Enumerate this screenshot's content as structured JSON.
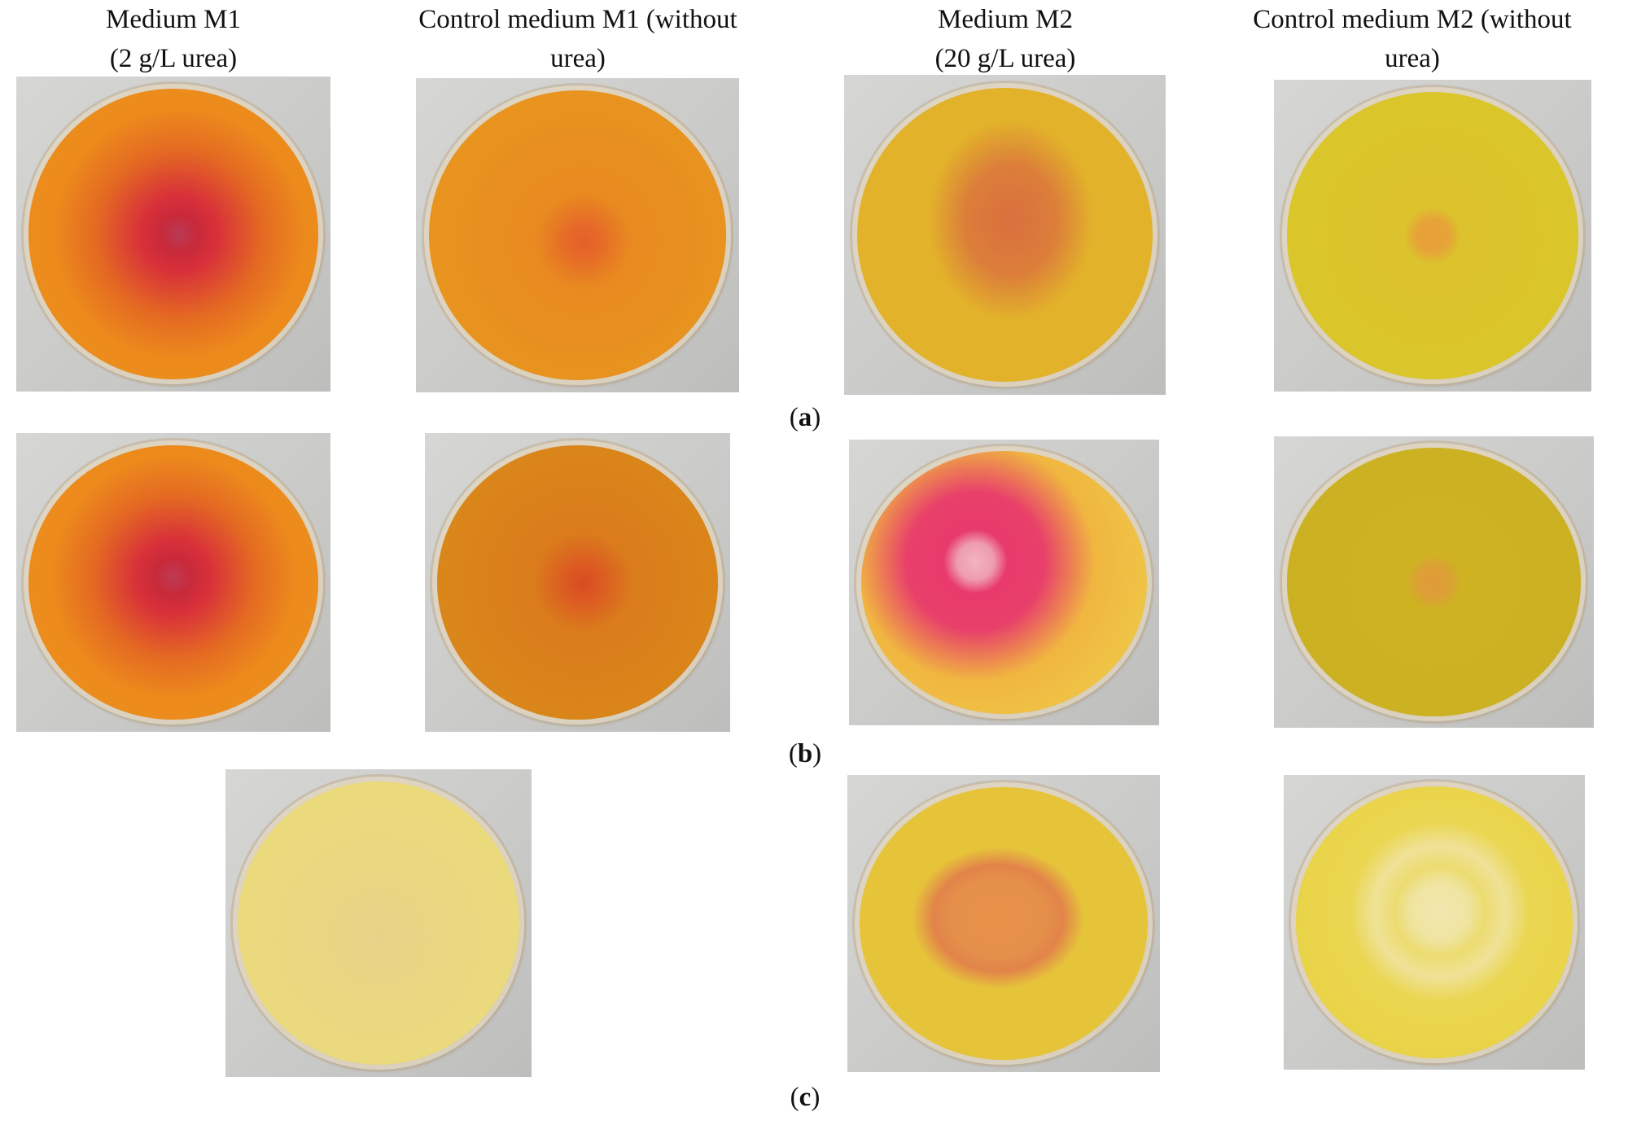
{
  "headers": [
    {
      "line1": "Medium M1",
      "line2": "(2 g/L urea)"
    },
    {
      "line1": "Control medium M1 (without",
      "line2": "urea)"
    },
    {
      "line1": "Medium M2",
      "line2": "(20 g/L urea)"
    },
    {
      "line1": "Control medium M2 (without",
      "line2": "urea)"
    }
  ],
  "panels": [
    {
      "open": "(",
      "letter": "a",
      "close": ")"
    },
    {
      "open": "(",
      "letter": "b",
      "close": ")"
    },
    {
      "open": "(",
      "letter": "c",
      "close": ")"
    }
  ]
}
